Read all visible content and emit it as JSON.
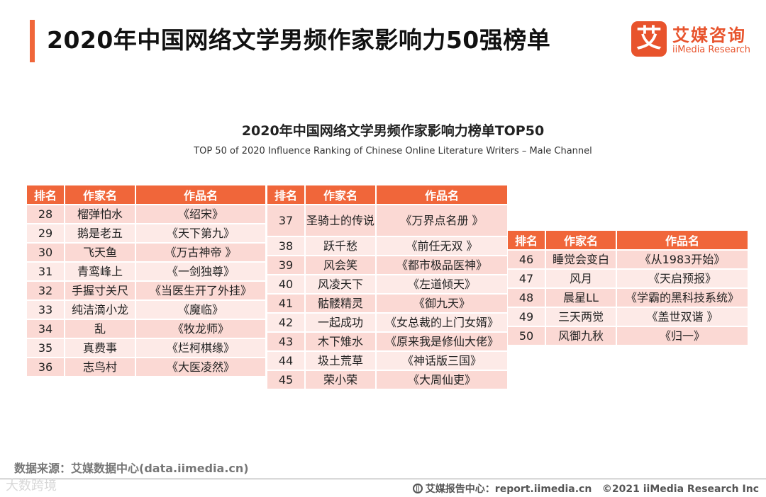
{
  "header": {
    "title": "2020年中国网络文学男频作家影响力50强榜单"
  },
  "logo": {
    "mark": "艾",
    "name_cn": "艾媒咨询",
    "name_en": "iiMedia Research"
  },
  "chart": {
    "title": "2020年中国网络文学男频作家影响力榜单TOP50",
    "subtitle": "TOP 50 of 2020 Influence Ranking of Chinese Online Literature Writers – Male Channel"
  },
  "columns": {
    "rank": "排名",
    "author": "作家名",
    "work": "作品名"
  },
  "tables": [
    {
      "rows": [
        {
          "rank": "28",
          "author": "榴弹怕水",
          "work": "《绍宋》"
        },
        {
          "rank": "29",
          "author": "鹅是老五",
          "work": "《天下第九》"
        },
        {
          "rank": "30",
          "author": "飞天鱼",
          "work": "《万古神帝 》"
        },
        {
          "rank": "31",
          "author": "青鸾峰上",
          "work": "《一剑独尊》"
        },
        {
          "rank": "32",
          "author": "手握寸关尺",
          "work": "《当医生开了外挂》"
        },
        {
          "rank": "33",
          "author": "纯洁滴小龙",
          "work": "《魔临》"
        },
        {
          "rank": "34",
          "author": "乱",
          "work": "《牧龙师》"
        },
        {
          "rank": "35",
          "author": "真费事",
          "work": "《烂柯棋缘》"
        },
        {
          "rank": "36",
          "author": "志鸟村",
          "work": "《大医凌然》"
        }
      ]
    },
    {
      "rows": [
        {
          "rank": "37",
          "author": "圣骑士的传说",
          "work": "《万界点名册 》"
        },
        {
          "rank": "38",
          "author": "跃千愁",
          "work": "《前任无双 》"
        },
        {
          "rank": "39",
          "author": "风会笑",
          "work": "《都市极品医神》"
        },
        {
          "rank": "40",
          "author": "风凌天下",
          "work": "《左道倾天》"
        },
        {
          "rank": "41",
          "author": "骷髅精灵",
          "work": "《御九天》"
        },
        {
          "rank": "42",
          "author": "一起成功",
          "work": "《女总裁的上门女婿》"
        },
        {
          "rank": "43",
          "author": "木下雉水",
          "work": "《原来我是修仙大佬》"
        },
        {
          "rank": "44",
          "author": "圾土荒草",
          "work": "《神话版三国》"
        },
        {
          "rank": "45",
          "author": "荣小荣",
          "work": "《大周仙吏》"
        }
      ]
    },
    {
      "rows": [
        {
          "rank": "46",
          "author": "睡觉会变白",
          "work": "《从1983开始》"
        },
        {
          "rank": "47",
          "author": "风月",
          "work": "《天启预报》"
        },
        {
          "rank": "48",
          "author": "晨星LL",
          "work": "《学霸的黑科技系统》"
        },
        {
          "rank": "49",
          "author": "三天两觉",
          "work": "《盖世双谐 》"
        },
        {
          "rank": "50",
          "author": "风御九秋",
          "work": "《归一》"
        }
      ]
    }
  ],
  "footer": {
    "source": "数据来源：艾媒数据中心(data.iimedia.cn)",
    "watermark": "大数跨境",
    "report": "艾媒报告中心：report.iimedia.cn",
    "copyright": "©2021  iiMedia Research  Inc"
  },
  "colors": {
    "accent": "#f0663a",
    "row_dark": "#fbd9d4",
    "row_light": "#fdeae7",
    "logo": "#e8532c"
  },
  "icons": [
    "globe-icon"
  ]
}
